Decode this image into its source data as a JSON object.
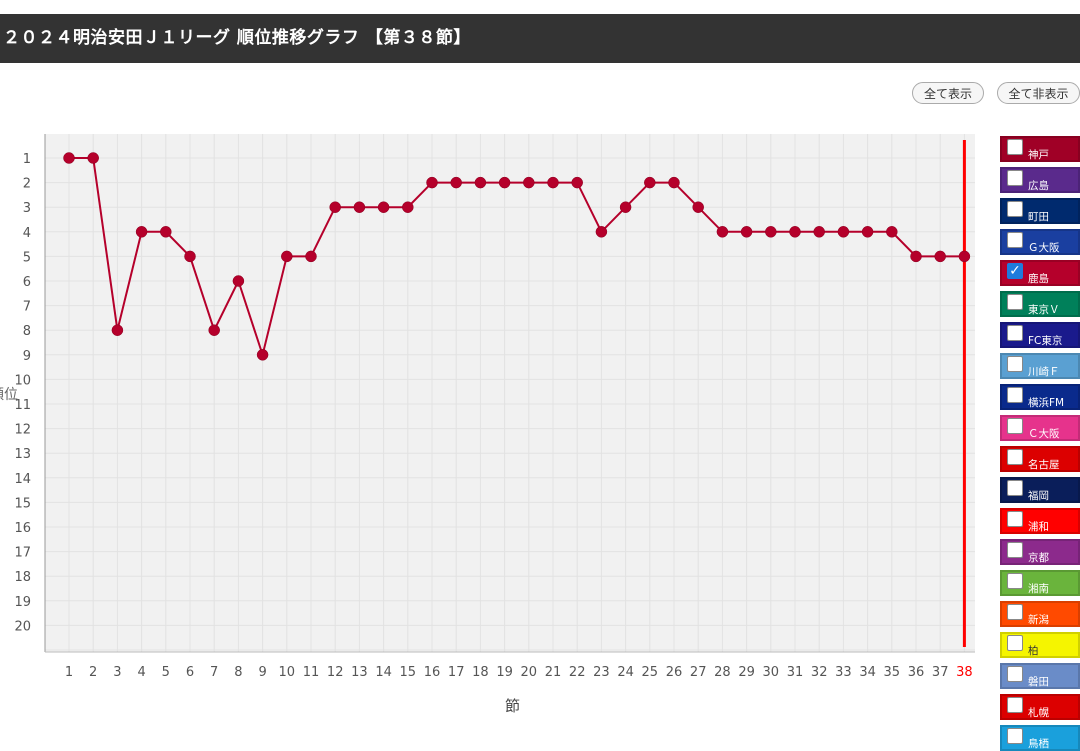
{
  "header": {
    "title": "２０２４明治安田Ｊ１リーグ 順位推移グラフ 【第３８節】"
  },
  "buttons": {
    "show_all": "全て表示",
    "hide_all": "全て非表示"
  },
  "chart_data": {
    "type": "line",
    "title": "",
    "xlabel": "節",
    "ylabel": "順位",
    "x": [
      1,
      2,
      3,
      4,
      5,
      6,
      7,
      8,
      9,
      10,
      11,
      12,
      13,
      14,
      15,
      16,
      17,
      18,
      19,
      20,
      21,
      22,
      23,
      24,
      25,
      26,
      27,
      28,
      29,
      30,
      31,
      32,
      33,
      34,
      35,
      36,
      37,
      38
    ],
    "ylim": [
      1,
      20
    ],
    "y_inverted": true,
    "grid": true,
    "current_round": 38,
    "current_round_color": "#ff0000",
    "series": [
      {
        "name": "鹿島",
        "color": "#b5002b",
        "values": [
          1,
          1,
          8,
          4,
          4,
          5,
          8,
          6,
          9,
          5,
          5,
          3,
          3,
          3,
          3,
          2,
          2,
          2,
          2,
          2,
          2,
          2,
          4,
          3,
          2,
          2,
          3,
          4,
          4,
          4,
          4,
          4,
          4,
          4,
          4,
          5,
          5,
          5
        ]
      }
    ]
  },
  "legend": [
    {
      "name": "神戸",
      "color": "#a00026",
      "checked": false
    },
    {
      "name": "広島",
      "color": "#5a2a8c",
      "checked": false
    },
    {
      "name": "町田",
      "color": "#002a6e",
      "checked": false
    },
    {
      "name": "Ｇ大阪",
      "color": "#1a3fa0",
      "checked": false
    },
    {
      "name": "鹿島",
      "color": "#b5002b",
      "checked": true
    },
    {
      "name": "東京Ｖ",
      "color": "#00805a",
      "checked": false
    },
    {
      "name": "FC東京",
      "color": "#1a1a8c",
      "checked": false
    },
    {
      "name": "川崎Ｆ",
      "color": "#5aa0d2",
      "checked": false
    },
    {
      "name": "横浜FM",
      "color": "#0a2a8c",
      "checked": false
    },
    {
      "name": "Ｃ大阪",
      "color": "#e6338c",
      "checked": false
    },
    {
      "name": "名古屋",
      "color": "#dc0000",
      "checked": false
    },
    {
      "name": "福岡",
      "color": "#0a1e5a",
      "checked": false
    },
    {
      "name": "浦和",
      "color": "#ff0000",
      "checked": false
    },
    {
      "name": "京都",
      "color": "#8c2a8c",
      "checked": false
    },
    {
      "name": "湘南",
      "color": "#6ab43c",
      "checked": false
    },
    {
      "name": "新潟",
      "color": "#ff4a00",
      "checked": false
    },
    {
      "name": "柏",
      "color": "#f5f500",
      "checked": false
    },
    {
      "name": "磐田",
      "color": "#6a8cc8",
      "checked": false
    },
    {
      "name": "札幌",
      "color": "#dc0000",
      "checked": false
    },
    {
      "name": "鳥栖",
      "color": "#1aa0dc",
      "checked": false
    }
  ]
}
